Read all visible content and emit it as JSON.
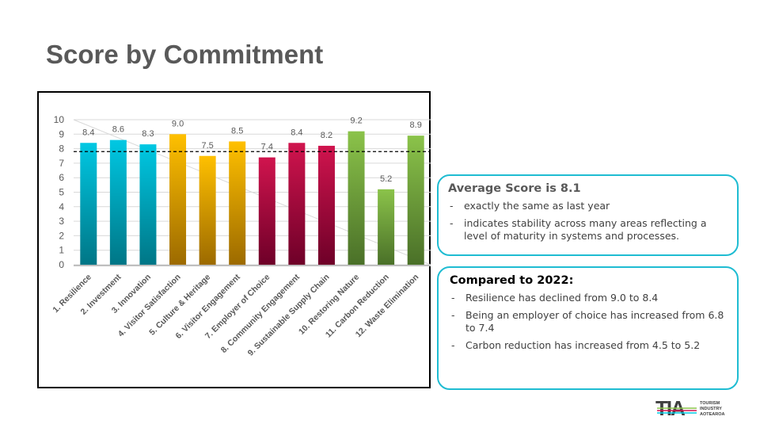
{
  "title": "Score by Commitment",
  "chart_data": {
    "type": "bar",
    "categories": [
      "1. Resilience",
      "2. Investment",
      "3. Innovation",
      "4. Visitor Satisfaction",
      "5. Culture & Heritage",
      "6. Visitor Engagement",
      "7. Employer of Choice",
      "8. Community Engagement",
      "9. Sustainable Supply Chain",
      "10. Restoring Nature",
      "11. Carbon Reduction",
      "12. Waste Elimination"
    ],
    "values": [
      8.4,
      8.6,
      8.3,
      9.0,
      7.5,
      8.5,
      7.4,
      8.4,
      8.2,
      9.2,
      5.2,
      8.9
    ],
    "labels": [
      "8.4",
      "8.6",
      "8.3",
      "9.0",
      "7.5",
      "8.5",
      "7.4",
      "8.4",
      "8.2",
      "9.2",
      "5.2",
      "8.9"
    ],
    "groups": [
      0,
      0,
      0,
      1,
      1,
      1,
      2,
      2,
      2,
      3,
      3,
      3
    ],
    "group_colors": [
      [
        "#00c8e3",
        "#007686"
      ],
      [
        "#ffc000",
        "#9c6a00"
      ],
      [
        "#d0144e",
        "#6e0028"
      ],
      [
        "#8bc34a",
        "#4a7028"
      ]
    ],
    "yticks": [
      "0",
      "1",
      "2",
      "3",
      "4",
      "5",
      "6",
      "7",
      "8",
      "9",
      "10"
    ],
    "ylim": [
      0,
      10
    ],
    "reference_line": 7.8,
    "grid": true
  },
  "card1": {
    "heading": "Average Score is 8.1",
    "items": [
      "exactly the same as last year",
      "indicates stability across many areas reflecting a level of maturity in systems and processes."
    ]
  },
  "card2": {
    "heading": "Compared to 2022:",
    "items": [
      "Resilience has declined from 9.0 to 8.4",
      "Being an employer of choice has increased from 6.8 to 7.4",
      "Carbon reduction has increased from 4.5 to 5.2"
    ]
  },
  "logo": {
    "text": "TIA",
    "sub": [
      "TOURISM",
      "INDUSTRY",
      "AOTEAROA"
    ]
  }
}
